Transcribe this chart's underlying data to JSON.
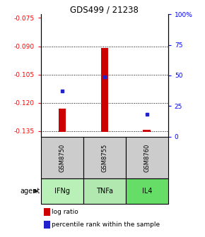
{
  "title": "GDS499 / 21238",
  "samples": [
    "GSM8750",
    "GSM8755",
    "GSM8760"
  ],
  "agents": [
    "IFNg",
    "TNFa",
    "IL4"
  ],
  "log_ratios": [
    -0.123,
    -0.091,
    -0.1345
  ],
  "percentile_ranks": [
    37,
    49,
    18
  ],
  "ylim_left": [
    -0.138,
    -0.073
  ],
  "ylim_right": [
    0,
    100
  ],
  "yticks_left": [
    -0.075,
    -0.09,
    -0.105,
    -0.12,
    -0.135
  ],
  "yticks_right": [
    0,
    25,
    50,
    75,
    100
  ],
  "ytick_right_labels": [
    "0",
    "25",
    "50",
    "75",
    "100%"
  ],
  "baseline": -0.1355,
  "bar_color": "#cc0000",
  "dot_color": "#2222cc",
  "sample_box_color": "#cccccc",
  "agent_box_color": "#aaffaa",
  "agent_box_color2": "#66ee66",
  "legend_bar_label": "log ratio",
  "legend_dot_label": "percentile rank within the sample",
  "bar_width": 0.18
}
